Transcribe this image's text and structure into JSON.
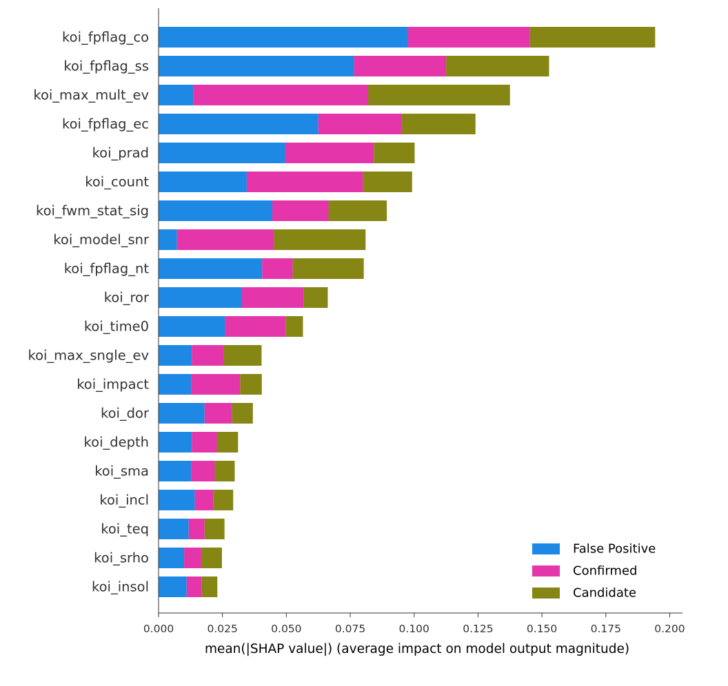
{
  "chart_data": {
    "type": "bar",
    "orientation": "horizontal",
    "stacked": true,
    "xlabel": "mean(|SHAP value|) (average impact on model output magnitude)",
    "xlim": [
      0.0,
      0.205
    ],
    "xticks": [
      "0.000",
      "0.025",
      "0.050",
      "0.075",
      "0.100",
      "0.125",
      "0.150",
      "0.175",
      "0.200"
    ],
    "xtick_values": [
      0.0,
      0.025,
      0.05,
      0.075,
      0.1,
      0.125,
      0.15,
      0.175,
      0.2
    ],
    "grid": false,
    "legend_position": "bottom-right",
    "categories": [
      "koi_fpflag_co",
      "koi_fpflag_ss",
      "koi_max_mult_ev",
      "koi_fpflag_ec",
      "koi_prad",
      "koi_count",
      "koi_fwm_stat_sig",
      "koi_model_snr",
      "koi_fpflag_nt",
      "koi_ror",
      "koi_time0",
      "koi_max_sngle_ev",
      "koi_impact",
      "koi_dor",
      "koi_depth",
      "koi_sma",
      "koi_incl",
      "koi_teq",
      "koi_srho",
      "koi_insol"
    ],
    "series": [
      {
        "name": "False Positive",
        "color": "#1e88e5",
        "values": [
          0.0975,
          0.0765,
          0.0135,
          0.0625,
          0.0495,
          0.0345,
          0.0445,
          0.0072,
          0.0405,
          0.0325,
          0.026,
          0.013,
          0.0127,
          0.018,
          0.013,
          0.0127,
          0.0142,
          0.0118,
          0.01,
          0.011
        ]
      },
      {
        "name": "Confirmed",
        "color": "#e535ab",
        "values": [
          0.0478,
          0.036,
          0.0685,
          0.0327,
          0.0347,
          0.0455,
          0.022,
          0.038,
          0.012,
          0.0242,
          0.0237,
          0.0125,
          0.0192,
          0.0107,
          0.0098,
          0.0093,
          0.0072,
          0.0062,
          0.0067,
          0.0058
        ]
      },
      {
        "name": "Candidate",
        "color": "#868614",
        "values": [
          0.049,
          0.0403,
          0.0555,
          0.0288,
          0.016,
          0.0192,
          0.0228,
          0.0358,
          0.0278,
          0.0095,
          0.0068,
          0.0148,
          0.0085,
          0.0082,
          0.0083,
          0.0078,
          0.0078,
          0.0078,
          0.0081,
          0.0062
        ]
      }
    ]
  }
}
